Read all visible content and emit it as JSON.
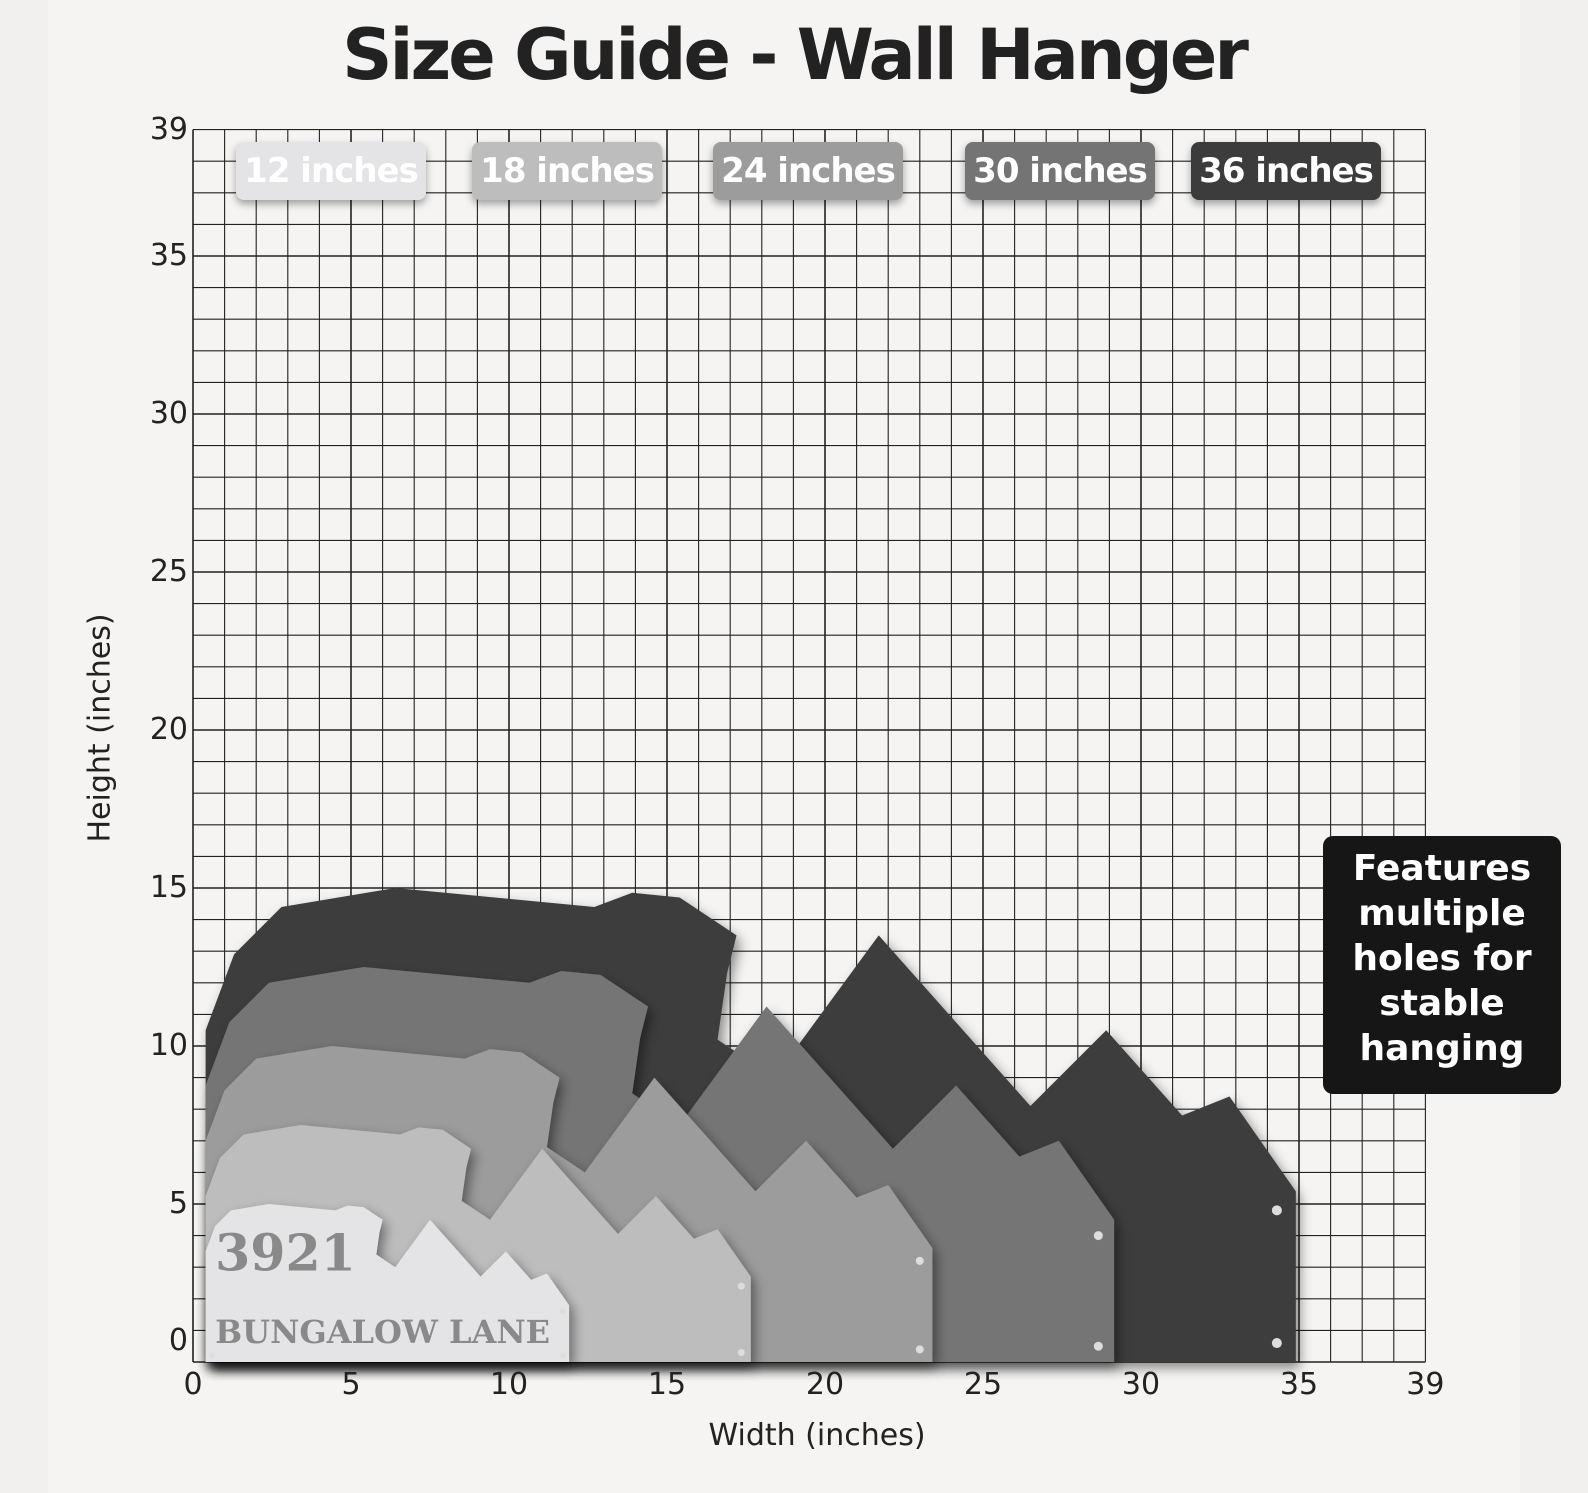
{
  "title": "Size Guide - Wall Hanger",
  "axes": {
    "xlabel": "Width (inches)",
    "ylabel": "Height (inches)",
    "xticks": [
      "0",
      "5",
      "10",
      "15",
      "20",
      "25",
      "30",
      "35",
      "39"
    ],
    "yticks": [
      "0",
      "5",
      "10",
      "15",
      "20",
      "25",
      "30",
      "35",
      "39"
    ],
    "range": [
      0,
      39
    ],
    "grid": "1 inch"
  },
  "sizes": [
    {
      "label": "12 inches",
      "inches": 12,
      "color": "#e4e4e6"
    },
    {
      "label": "18 inches",
      "inches": 18,
      "color": "#bdbdbd"
    },
    {
      "label": "24 inches",
      "inches": 24,
      "color": "#9c9c9c"
    },
    {
      "label": "30 inches",
      "inches": 30,
      "color": "#747474"
    },
    {
      "label": "36 inches",
      "inches": 36,
      "color": "#3c3c3c"
    }
  ],
  "sign": {
    "number": "3921",
    "street": "BUNGALOW LANE"
  },
  "callout": "Features multiple holes for stable hanging"
}
